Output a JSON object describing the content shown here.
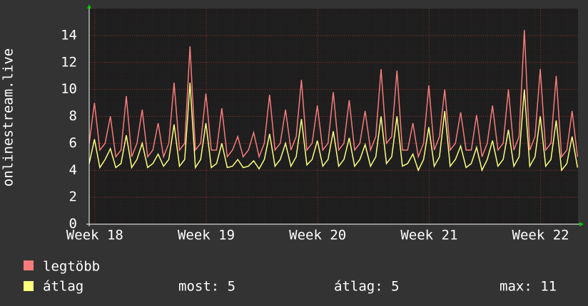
{
  "chart_data": {
    "type": "line",
    "y_label": "onlinestream.live",
    "xlim": [
      0,
      30.7
    ],
    "xticks": [
      {
        "value": 0.35,
        "label": "Week 18"
      },
      {
        "value": 7.35,
        "label": "Week 19"
      },
      {
        "value": 14.35,
        "label": "Week 20"
      },
      {
        "value": 21.35,
        "label": "Week 21"
      },
      {
        "value": 28.35,
        "label": "Week 22"
      }
    ],
    "ylim": [
      0,
      16
    ],
    "yticks": [
      0,
      2,
      4,
      6,
      8,
      10,
      12,
      14
    ],
    "grid": true,
    "x": [
      0,
      0.33,
      0.67,
      1,
      1.33,
      1.67,
      2,
      2.33,
      2.67,
      3,
      3.33,
      3.67,
      4,
      4.33,
      4.67,
      5,
      5.33,
      5.67,
      6,
      6.33,
      6.67,
      7,
      7.33,
      7.67,
      8,
      8.33,
      8.67,
      9,
      9.33,
      9.67,
      10,
      10.33,
      10.67,
      11,
      11.33,
      11.67,
      12,
      12.33,
      12.67,
      13,
      13.33,
      13.67,
      14,
      14.33,
      14.67,
      15,
      15.33,
      15.67,
      16,
      16.33,
      16.67,
      17,
      17.33,
      17.67,
      18,
      18.33,
      18.67,
      19,
      19.33,
      19.67,
      20,
      20.33,
      20.67,
      21,
      21.33,
      21.67,
      22,
      22.33,
      22.67,
      23,
      23.33,
      23.67,
      24,
      24.33,
      24.67,
      25,
      25.33,
      25.67,
      26,
      26.33,
      26.67,
      27,
      27.33,
      27.67,
      28,
      28.33,
      28.67,
      29,
      29.33,
      29.67,
      30,
      30.33,
      30.67
    ],
    "series": [
      {
        "name": "legtöbb",
        "color": "#f77b7b",
        "values": [
          6,
          9,
          5.5,
          6,
          8,
          5,
          5.5,
          9.5,
          5,
          6,
          8.5,
          5,
          5.5,
          7.5,
          5,
          6,
          10.5,
          5.5,
          6,
          13.2,
          5.5,
          6,
          9.7,
          5.5,
          5.5,
          8.6,
          5,
          5.5,
          6.5,
          5,
          5.5,
          6.8,
          5,
          6,
          9.6,
          5.5,
          6,
          8.5,
          5.5,
          6.5,
          10.7,
          5.5,
          6,
          8.8,
          5.5,
          6,
          9.8,
          5.5,
          6,
          9.2,
          5.5,
          6,
          8.4,
          5.5,
          6.5,
          11.5,
          6,
          6.5,
          11.4,
          5.5,
          5.5,
          7.5,
          5,
          6,
          10.3,
          5.5,
          6.5,
          10,
          5.5,
          6,
          8.3,
          5.5,
          5.5,
          8.1,
          5,
          6,
          8.8,
          5.5,
          6,
          10,
          5.5,
          6.5,
          14.4,
          5.5,
          6.5,
          11.5,
          5.5,
          6,
          11,
          5,
          5.5,
          8.4,
          5
        ]
      },
      {
        "name": "átlag",
        "color": "#ffff80",
        "values": [
          4.5,
          6.3,
          4.2,
          4.8,
          5.6,
          4.2,
          4.5,
          6.6,
          4.2,
          4.8,
          6,
          4.2,
          4.5,
          5.2,
          4.3,
          4.8,
          7.4,
          4.3,
          4.8,
          10.5,
          4.2,
          4.8,
          7.5,
          4.2,
          4.5,
          6,
          4.2,
          4.3,
          4.8,
          4.2,
          4.3,
          4.7,
          4.1,
          4.8,
          6.7,
          4.3,
          4.8,
          6,
          4.3,
          5,
          7.8,
          4.4,
          4.8,
          6.2,
          4.3,
          4.8,
          6.9,
          4.3,
          4.8,
          6.4,
          4.3,
          4.8,
          5.9,
          4.3,
          5,
          8,
          4.5,
          5,
          8,
          4.3,
          4.5,
          5.2,
          4,
          4.8,
          7.2,
          4.3,
          5,
          8.4,
          4.3,
          4.8,
          5.8,
          4.2,
          4.5,
          5.7,
          4,
          4.8,
          6.2,
          4.3,
          4.8,
          7,
          4.3,
          5,
          10,
          4.3,
          5,
          8,
          4.3,
          4.8,
          7.7,
          4,
          4.5,
          6.5,
          4.2
        ]
      }
    ],
    "stats": [
      "most: 5",
      "átlag: 5",
      "max: 11"
    ]
  }
}
